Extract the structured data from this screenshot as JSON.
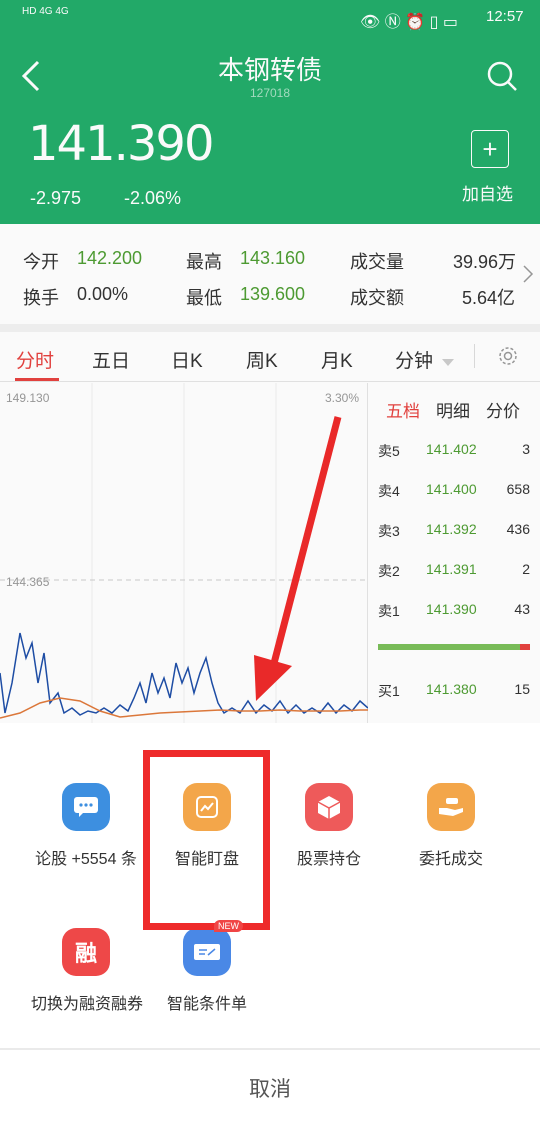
{
  "status_bar": {
    "time": "12:57",
    "left_text": "HD 4G 4G"
  },
  "header": {
    "title": "本钢转债",
    "code": "127018",
    "price": "141.390",
    "change": "-2.975",
    "change_pct": "-2.06%",
    "add_label": "加自选"
  },
  "quote": {
    "open_label": "今开",
    "open": "142.200",
    "high_label": "最高",
    "high": "143.160",
    "vol_label": "成交量",
    "vol": "39.96万",
    "turn_label": "换手",
    "turn": "0.00%",
    "low_label": "最低",
    "low": "139.600",
    "amt_label": "成交额",
    "amt": "5.64亿"
  },
  "tabs": [
    "分时",
    "五日",
    "日K",
    "周K",
    "月K",
    "分钟"
  ],
  "chart": {
    "top_price": "149.130",
    "top_pct": "3.30%",
    "mid_price": "144.365"
  },
  "book": {
    "tabs": [
      "五档",
      "明细",
      "分价"
    ],
    "rows": [
      {
        "label": "卖5",
        "price": "141.402",
        "vol": "3"
      },
      {
        "label": "卖4",
        "price": "141.400",
        "vol": "658"
      },
      {
        "label": "卖3",
        "price": "141.392",
        "vol": "436"
      },
      {
        "label": "卖2",
        "price": "141.391",
        "vol": "2"
      },
      {
        "label": "卖1",
        "price": "141.390",
        "vol": "43"
      },
      {
        "label": "买1",
        "price": "141.380",
        "vol": "15"
      }
    ]
  },
  "actions": [
    {
      "label": "论股 +5554 条",
      "icon": "chat-icon",
      "color": "#3d8fe0"
    },
    {
      "label": "智能盯盘",
      "icon": "monitor-icon",
      "color": "#f3a64a"
    },
    {
      "label": "股票持仓",
      "icon": "box-icon",
      "color": "#ee5a5a"
    },
    {
      "label": "委托成交",
      "icon": "hand-icon",
      "color": "#f3a64a"
    },
    {
      "label": "切换为融资融券",
      "icon": "margin-icon",
      "color": "#ee4848"
    },
    {
      "label": "智能条件单",
      "icon": "ticket-icon",
      "color": "#4a88e6"
    }
  ],
  "new_badge": "NEW",
  "cancel": "取消"
}
